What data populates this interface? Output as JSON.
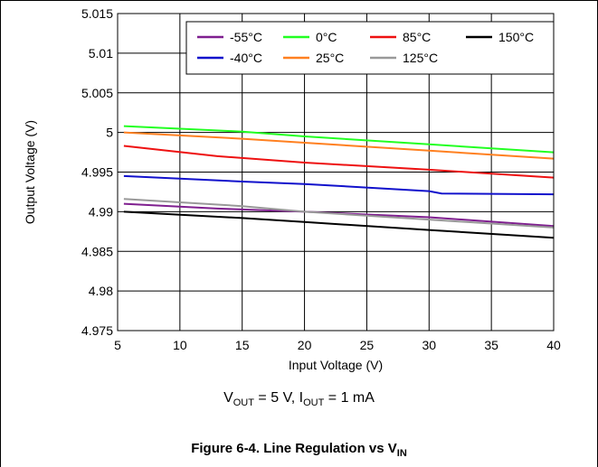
{
  "chart_data": {
    "type": "line",
    "xlabel": "Input Voltage (V)",
    "ylabel": "Output Voltage (V)",
    "xlim": [
      5,
      40
    ],
    "ylim": [
      4.975,
      5.015
    ],
    "xticks": [
      "5",
      "10",
      "15",
      "20",
      "25",
      "30",
      "35",
      "40"
    ],
    "yticks": [
      "4.975",
      "4.98",
      "4.985",
      "4.99",
      "4.995",
      "5",
      "5.005",
      "5.01",
      "5.015"
    ],
    "grid": true,
    "legend_position": "top-right",
    "series": [
      {
        "name": "-55°C",
        "color": "#7f1f8f",
        "x": [
          5.5,
          13,
          20,
          30,
          40
        ],
        "y": [
          4.991,
          4.9904,
          4.99,
          4.9893,
          4.9882
        ]
      },
      {
        "name": "0°C",
        "color": "#22ff22",
        "x": [
          5.5,
          15,
          20,
          30,
          40
        ],
        "y": [
          5.0008,
          5.0001,
          4.9995,
          4.9985,
          4.9975
        ]
      },
      {
        "name": "85°C",
        "color": "#ee1111",
        "x": [
          5.5,
          13,
          20,
          30,
          40
        ],
        "y": [
          4.9983,
          4.997,
          4.9962,
          4.9953,
          4.9943
        ]
      },
      {
        "name": "150°C",
        "color": "#000000",
        "x": [
          5.5,
          15,
          20,
          30,
          40
        ],
        "y": [
          4.99,
          4.9892,
          4.9887,
          4.9877,
          4.9867
        ]
      },
      {
        "name": "-40°C",
        "color": "#1111cc",
        "x": [
          5.5,
          15,
          20,
          30,
          31,
          40
        ],
        "y": [
          4.9945,
          4.9938,
          4.9935,
          4.9926,
          4.9923,
          4.9922
        ]
      },
      {
        "name": "25°C",
        "color": "#ff8020",
        "x": [
          5.5,
          15,
          20,
          30,
          40
        ],
        "y": [
          5.0,
          4.9992,
          4.9987,
          4.9977,
          4.9967
        ]
      },
      {
        "name": "125°C",
        "color": "#999999",
        "x": [
          5.5,
          15,
          20,
          30,
          40
        ],
        "y": [
          4.9916,
          4.9907,
          4.99,
          4.989,
          4.988
        ]
      }
    ]
  },
  "condition": {
    "v": "V",
    "v_sub": "OUT",
    "v_rest": " = 5 V, ",
    "i": "I",
    "i_sub": "OUT",
    "i_rest": " = 1 mA"
  },
  "caption": {
    "text": "Figure 6-4. Line Regulation vs V",
    "sub": "IN"
  }
}
